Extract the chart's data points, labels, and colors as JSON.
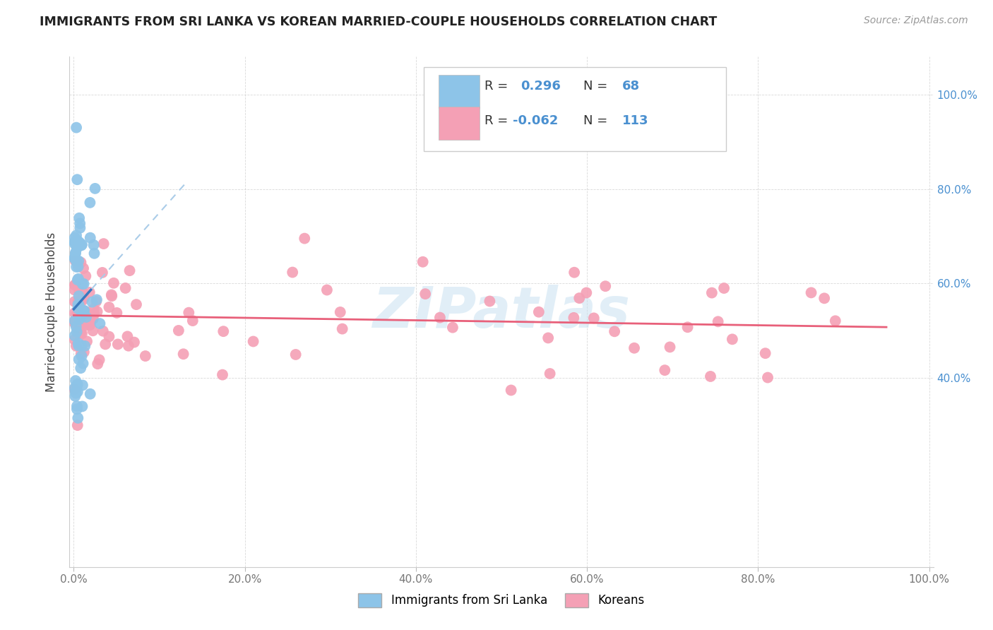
{
  "title": "IMMIGRANTS FROM SRI LANKA VS KOREAN MARRIED-COUPLE HOUSEHOLDS CORRELATION CHART",
  "source": "Source: ZipAtlas.com",
  "ylabel": "Married-couple Households",
  "color_srilanka": "#8dc4e8",
  "color_korean": "#f4a0b5",
  "color_srilanka_line": "#3a7abf",
  "color_korean_line": "#e8607a",
  "color_srilanka_dash": "#aacce8",
  "background_color": "#ffffff",
  "grid_color": "#d0d0d0",
  "watermark_color": "#c5dff0",
  "right_tick_color": "#4a90d0",
  "title_color": "#222222",
  "source_color": "#999999",
  "ylabel_color": "#444444",
  "xtick_color": "#777777",
  "legend_r1_text": "R =  0.296",
  "legend_n1_text": "N =  68",
  "legend_r2_text": "R = -0.062",
  "legend_n2_text": "N = 113",
  "legend_val_color": "#4a90d0",
  "legend_text_color": "#333333"
}
